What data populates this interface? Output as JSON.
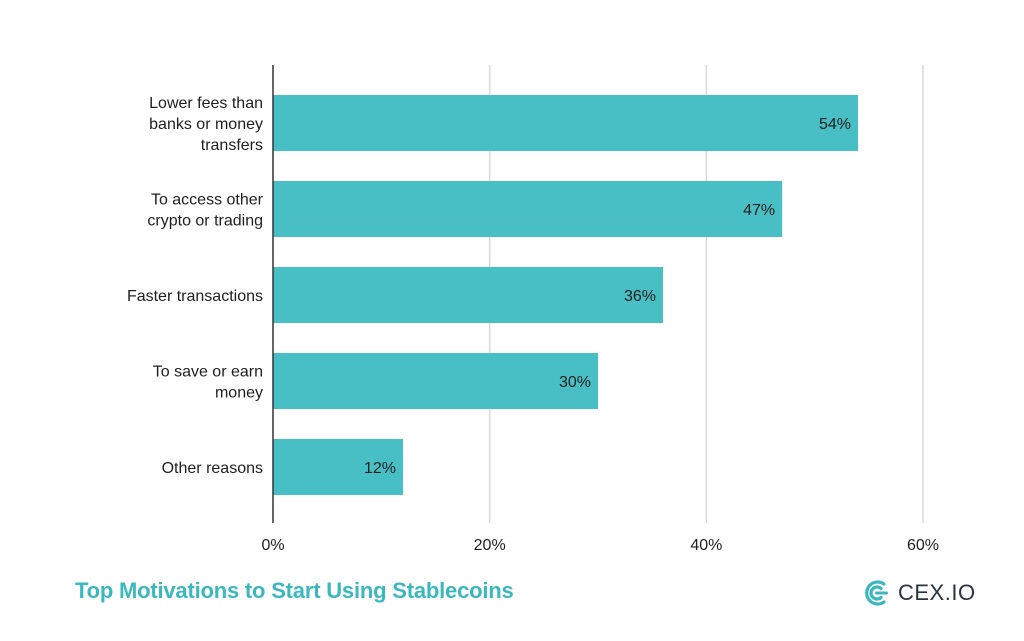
{
  "colors": {
    "bar": "#48bfc4",
    "axis": "#333333",
    "grid": "#d9d9d9",
    "text": "#1f1f1f",
    "title": "#3bb8bc",
    "brand_dark": "#2a3340"
  },
  "footer": {
    "title": "Top Motivations to Start Using Stablecoins"
  },
  "brand": {
    "name": "CEX.IO",
    "icon": "cexio-logo-icon"
  },
  "chart_data": {
    "type": "bar",
    "orientation": "horizontal",
    "title": "Top Motivations to Start Using Stablecoins",
    "categories": [
      [
        "Lower fees than",
        "banks or money",
        "transfers"
      ],
      [
        "To access other",
        "crypto or trading"
      ],
      [
        "Faster transactions"
      ],
      [
        "To save or earn",
        "money"
      ],
      [
        "Other reasons"
      ]
    ],
    "values": [
      54,
      47,
      36,
      30,
      12
    ],
    "value_labels": [
      "54%",
      "47%",
      "36%",
      "30%",
      "12%"
    ],
    "xlim": [
      0,
      60
    ],
    "xticks": [
      0,
      20,
      40,
      60
    ],
    "xtick_labels": [
      "0%",
      "20%",
      "40%",
      "60%"
    ],
    "grid": true,
    "legend": "none"
  }
}
